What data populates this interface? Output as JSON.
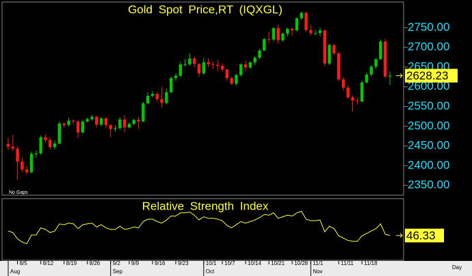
{
  "chart_data": [
    {
      "type": "candlestick",
      "title": "Gold Spot Price,RT (IQXGL)",
      "annotation": "No Gaps",
      "xlabel": "Day",
      "up_color": "#00c800",
      "down_color": "#ff1a1a",
      "categories": [
        null,
        null,
        "8/5",
        null,
        null,
        null,
        null,
        "8/12",
        null,
        null,
        null,
        null,
        "8/19",
        null,
        null,
        null,
        null,
        "8/26",
        null,
        null,
        null,
        null,
        "9/2",
        null,
        null,
        null,
        "9/9",
        null,
        null,
        null,
        null,
        "9/16",
        null,
        null,
        null,
        null,
        "9/23",
        null,
        null,
        null,
        null,
        null,
        "10/1",
        null,
        null,
        null,
        "10/7",
        null,
        null,
        null,
        null,
        "10/14",
        null,
        null,
        null,
        null,
        "10/21",
        null,
        null,
        null,
        null,
        "10/28",
        null,
        null,
        null,
        "11/1",
        null,
        null,
        null,
        null,
        null,
        "11/11",
        null,
        null,
        null,
        null,
        "11/18",
        null,
        null,
        null,
        null,
        null,
        null
      ],
      "month_labels": [
        "Aug",
        null,
        null,
        null,
        null,
        null,
        null,
        null,
        null,
        null,
        null,
        null,
        null,
        null,
        null,
        null,
        null,
        null,
        null,
        null,
        null,
        null,
        "Sep",
        null,
        null,
        null,
        null,
        null,
        null,
        null,
        null,
        null,
        null,
        null,
        null,
        null,
        null,
        null,
        null,
        null,
        null,
        null,
        "Oct",
        null,
        null,
        null,
        null,
        null,
        null,
        null,
        null,
        null,
        null,
        null,
        null,
        null,
        null,
        null,
        null,
        null,
        null,
        null,
        null,
        null,
        null,
        "Nov",
        null,
        null,
        null,
        null,
        null,
        null,
        null,
        null,
        null,
        null,
        null,
        null,
        null,
        null,
        null,
        null,
        null
      ],
      "open": [
        2455,
        2448,
        2443,
        2410,
        2390,
        2383,
        2430,
        2431,
        2472,
        2465,
        2447,
        2456,
        2507,
        2503,
        2514,
        2512,
        2484,
        2512,
        2518,
        2524,
        2504,
        2520,
        2503,
        2493,
        2495,
        2517,
        2497,
        2506,
        2516,
        2512,
        2558,
        2577,
        2582,
        2569,
        2559,
        2586,
        2622,
        2628,
        2657,
        2657,
        2672,
        2658,
        2634,
        2662,
        2657,
        2656,
        2653,
        2644,
        2622,
        2608,
        2630,
        2657,
        2649,
        2662,
        2674,
        2692,
        2721,
        2720,
        2749,
        2718,
        2735,
        2747,
        2743,
        2774,
        2788,
        2744,
        2736,
        2736,
        2743,
        2659,
        2706,
        2685,
        2619,
        2598,
        2573,
        2565,
        2563,
        2611,
        2631,
        2651,
        2670,
        2715,
        2626
      ],
      "high": [
        2470,
        2478,
        2450,
        2420,
        2400,
        2436,
        2439,
        2477,
        2480,
        2471,
        2464,
        2512,
        2510,
        2521,
        2517,
        2515,
        2516,
        2522,
        2528,
        2526,
        2523,
        2523,
        2505,
        2502,
        2523,
        2529,
        2510,
        2519,
        2523,
        2561,
        2586,
        2589,
        2586,
        2600,
        2595,
        2626,
        2634,
        2664,
        2670,
        2685,
        2677,
        2660,
        2673,
        2672,
        2664,
        2668,
        2660,
        2646,
        2626,
        2633,
        2660,
        2666,
        2665,
        2678,
        2696,
        2724,
        2740,
        2750,
        2758,
        2738,
        2750,
        2750,
        2776,
        2790,
        2790,
        2757,
        2745,
        2750,
        2745,
        2710,
        2709,
        2688,
        2625,
        2604,
        2578,
        2572,
        2615,
        2636,
        2655,
        2673,
        2720,
        2722,
        2640
      ],
      "low": [
        2440,
        2437,
        2364,
        2383,
        2378,
        2380,
        2421,
        2428,
        2458,
        2441,
        2441,
        2454,
        2496,
        2499,
        2505,
        2471,
        2482,
        2509,
        2514,
        2497,
        2500,
        2494,
        2472,
        2486,
        2491,
        2485,
        2494,
        2502,
        2493,
        2510,
        2555,
        2573,
        2562,
        2548,
        2555,
        2584,
        2615,
        2624,
        2651,
        2654,
        2649,
        2625,
        2630,
        2650,
        2645,
        2640,
        2638,
        2615,
        2605,
        2603,
        2625,
        2640,
        2645,
        2655,
        2670,
        2690,
        2710,
        2716,
        2709,
        2715,
        2728,
        2730,
        2740,
        2770,
        2740,
        2730,
        2730,
        2728,
        2652,
        2655,
        2680,
        2614,
        2590,
        2570,
        2537,
        2555,
        2560,
        2608,
        2626,
        2645,
        2668,
        2622,
        2605
      ],
      "close": [
        2448,
        2443,
        2410,
        2390,
        2383,
        2430,
        2431,
        2472,
        2465,
        2447,
        2456,
        2507,
        2503,
        2514,
        2512,
        2484,
        2512,
        2518,
        2524,
        2504,
        2520,
        2503,
        2493,
        2495,
        2517,
        2497,
        2506,
        2516,
        2512,
        2558,
        2577,
        2582,
        2569,
        2559,
        2586,
        2622,
        2628,
        2657,
        2657,
        2672,
        2658,
        2634,
        2662,
        2657,
        2656,
        2653,
        2644,
        2622,
        2608,
        2630,
        2657,
        2649,
        2662,
        2674,
        2692,
        2721,
        2720,
        2749,
        2718,
        2735,
        2747,
        2743,
        2774,
        2788,
        2744,
        2736,
        2736,
        2743,
        2659,
        2706,
        2685,
        2619,
        2598,
        2573,
        2565,
        2563,
        2611,
        2631,
        2651,
        2670,
        2715,
        2626,
        2628.23
      ],
      "ylim": [
        2325,
        2815
      ],
      "yticks": [
        {
          "value": 2350,
          "label": "2350.00"
        },
        {
          "value": 2400,
          "label": "2400.00"
        },
        {
          "value": 2450,
          "label": "2450.00"
        },
        {
          "value": 2500,
          "label": "2500.00"
        },
        {
          "value": 2550,
          "label": "2550.00"
        },
        {
          "value": 2600,
          "label": "2600.00"
        },
        {
          "value": 2650,
          "label": "2650.00"
        },
        {
          "value": 2700,
          "label": "2700.00"
        },
        {
          "value": 2750,
          "label": "2750.00"
        }
      ]
    },
    {
      "type": "line",
      "title": "Relative Strength Index",
      "color": "#ffff33",
      "values": [
        52,
        50,
        42,
        38,
        36,
        47,
        47,
        56,
        54,
        50,
        52,
        61,
        60,
        62,
        61,
        55,
        60,
        61,
        62,
        57,
        60,
        56,
        54,
        54,
        58,
        54,
        55,
        57,
        56,
        64,
        67,
        67,
        64,
        62,
        66,
        71,
        71,
        75,
        75,
        76,
        72,
        66,
        70,
        68,
        68,
        67,
        65,
        59,
        56,
        60,
        64,
        62,
        64,
        66,
        69,
        73,
        72,
        75,
        68,
        70,
        72,
        71,
        75,
        77,
        67,
        65,
        65,
        66,
        51,
        58,
        55,
        46,
        43,
        40,
        39,
        39,
        46,
        49,
        52,
        55,
        61,
        48,
        46.33
      ],
      "ylim": [
        15,
        93
      ]
    }
  ]
}
